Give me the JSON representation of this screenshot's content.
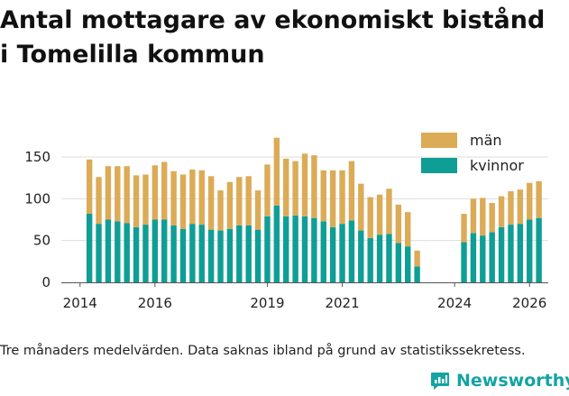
{
  "title_line1": "Antal mottagare av ekonomiskt bistånd",
  "title_line2": "i Tomelilla kommun",
  "footnote": "Tre månaders medelvärden. Data saknas ibland på grund av statistikssekretess.",
  "brand": "Newsworthy",
  "colors": {
    "women": "#0f9e95",
    "men": "#dcab57",
    "grid": "#dddddd"
  },
  "chart_data": {
    "type": "bar",
    "stacked": true,
    "title": "Antal mottagare av ekonomiskt bistånd i Tomelilla kommun",
    "xlabel": "",
    "ylabel": "",
    "ylim": [
      0,
      175
    ],
    "yticks": [
      0,
      50,
      100,
      150
    ],
    "xticks": [
      2014,
      2016,
      2019,
      2021,
      2024,
      2026
    ],
    "xlim": [
      2013.5,
      2026.5
    ],
    "legend": [
      "män",
      "kvinnor"
    ],
    "legend_position": "top-right",
    "x": [
      2014.25,
      2014.5,
      2014.75,
      2015.0,
      2015.25,
      2015.5,
      2015.75,
      2016.0,
      2016.25,
      2016.5,
      2016.75,
      2017.0,
      2017.25,
      2017.5,
      2017.75,
      2018.0,
      2018.25,
      2018.5,
      2018.75,
      2019.0,
      2019.25,
      2019.5,
      2019.75,
      2020.0,
      2020.25,
      2020.5,
      2020.75,
      2021.0,
      2021.25,
      2021.5,
      2021.75,
      2022.0,
      2022.25,
      2022.5,
      2022.75,
      2023.0,
      2023.25,
      2024.25,
      2024.5,
      2024.75,
      2025.0,
      2025.25,
      2025.5,
      2025.75,
      2026.0,
      2026.25
    ],
    "series": [
      {
        "name": "kvinnor",
        "values": [
          82,
          70,
          75,
          73,
          71,
          66,
          69,
          75,
          75,
          68,
          64,
          70,
          69,
          63,
          62,
          64,
          68,
          68,
          63,
          79,
          92,
          79,
          80,
          79,
          77,
          73,
          66,
          70,
          74,
          62,
          53,
          57,
          58,
          47,
          43,
          19,
          null,
          48,
          59,
          56,
          60,
          66,
          69,
          70,
          75,
          77
        ]
      },
      {
        "name": "män",
        "values": [
          65,
          56,
          64,
          66,
          68,
          62,
          60,
          65,
          69,
          65,
          65,
          65,
          65,
          64,
          48,
          56,
          58,
          59,
          47,
          62,
          81,
          69,
          65,
          75,
          75,
          61,
          68,
          64,
          71,
          56,
          49,
          48,
          54,
          46,
          41,
          19,
          null,
          34,
          41,
          45,
          35,
          37,
          40,
          41,
          44,
          44
        ]
      }
    ]
  }
}
